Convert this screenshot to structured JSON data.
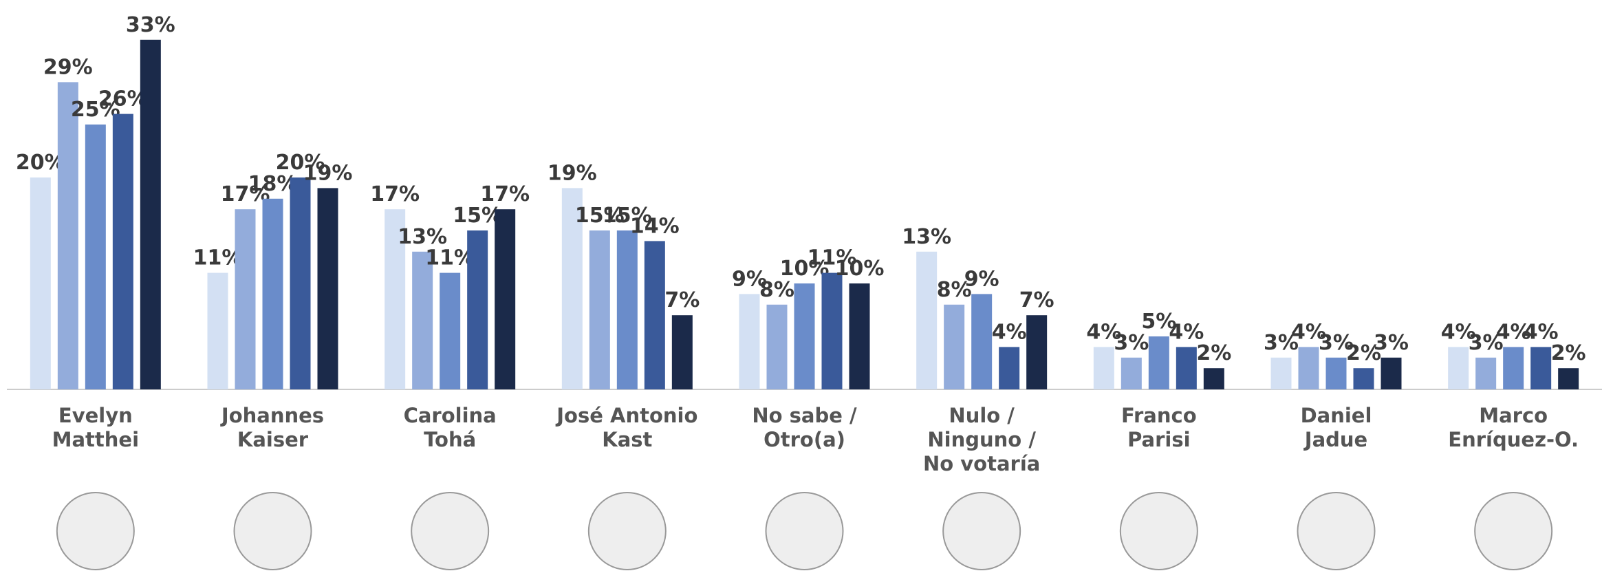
{
  "chart_data": {
    "type": "bar",
    "categories": [
      "Evelyn\nMatthei",
      "Johannes\nKaiser",
      "Carolina\nTohá",
      "José Antonio\nKast",
      "No sabe /\nOtro(a)",
      "Nulo /\nNinguno /\nNo votaría",
      "Franco\nParisi",
      "Daniel\nJadue",
      "Marco\nEnríquez-O."
    ],
    "series": [
      {
        "color": "#d3e0f3",
        "values": [
          20,
          11,
          17,
          19,
          9,
          13,
          4,
          3,
          4
        ],
        "value_labels": [
          "20%",
          "11%",
          "17%",
          "19%",
          "9%",
          "13%",
          "4%",
          "3%",
          "4%"
        ]
      },
      {
        "color": "#93acdb",
        "values": [
          29,
          17,
          13,
          15,
          8,
          8,
          3,
          4,
          3
        ],
        "value_labels": [
          "29%",
          "17%",
          "13%",
          "15%",
          "8%",
          "8%",
          "3%",
          "4%",
          "3%"
        ]
      },
      {
        "color": "#6a8cca",
        "values": [
          25,
          18,
          11,
          15,
          10,
          9,
          5,
          3,
          4
        ],
        "value_labels": [
          "25%",
          "18%",
          "11%",
          "15%",
          "10%",
          "9%",
          "5%",
          "3%",
          "4%"
        ]
      },
      {
        "color": "#3a5a9a",
        "values": [
          26,
          20,
          15,
          14,
          11,
          4,
          4,
          2,
          4
        ],
        "value_labels": [
          "26%",
          "20%",
          "15%",
          "14%",
          "11%",
          "4%",
          "4%",
          "2%",
          "4%"
        ]
      },
      {
        "color": "#1b2a4a",
        "values": [
          33,
          19,
          17,
          7,
          10,
          7,
          2,
          3,
          2
        ],
        "value_labels": [
          "33%",
          "19%",
          "17%",
          "7%",
          "10%",
          "7%",
          "2%",
          "3%",
          "2%"
        ]
      }
    ],
    "ylim": [
      0,
      35
    ]
  }
}
